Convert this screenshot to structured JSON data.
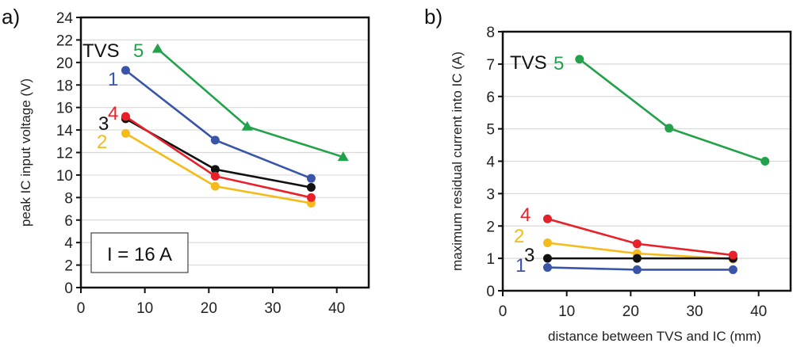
{
  "chart_data": [
    {
      "panel_label": "a)",
      "type": "line",
      "title": "",
      "xlabel": "",
      "ylabel": "peak IC input voltage (V)",
      "xlim": [
        0,
        45
      ],
      "ylim": [
        0,
        24
      ],
      "xticks": [
        0,
        10,
        20,
        30,
        40
      ],
      "yticks": [
        0,
        2,
        4,
        6,
        8,
        10,
        12,
        14,
        16,
        18,
        20,
        22,
        24
      ],
      "grid": "horizontal",
      "annotation": "I = 16 A",
      "tvs_label": "TVS",
      "series": [
        {
          "name": "1",
          "color": "#3a55a8",
          "marker": "circle",
          "x": [
            7,
            21,
            36
          ],
          "y": [
            19.3,
            13.1,
            9.7
          ]
        },
        {
          "name": "2",
          "color": "#f5bb1a",
          "marker": "circle",
          "x": [
            7,
            21,
            36
          ],
          "y": [
            13.7,
            9.0,
            7.5
          ]
        },
        {
          "name": "3",
          "color": "#111111",
          "marker": "circle",
          "x": [
            7,
            21,
            36
          ],
          "y": [
            15.0,
            10.5,
            8.9
          ]
        },
        {
          "name": "4",
          "color": "#e8202a",
          "marker": "circle",
          "x": [
            7,
            21,
            36
          ],
          "y": [
            15.2,
            9.9,
            8.0
          ]
        },
        {
          "name": "5",
          "color": "#22a24a",
          "marker": "triangle",
          "x": [
            12,
            26,
            41
          ],
          "y": [
            21.2,
            14.3,
            11.6
          ]
        }
      ]
    },
    {
      "panel_label": "b)",
      "type": "line",
      "title": "",
      "xlabel": "distance between TVS and IC (mm)",
      "ylabel": "maximum residual current into IC  (A)",
      "xlim": [
        0,
        45
      ],
      "ylim": [
        0,
        8
      ],
      "xticks": [
        0,
        10,
        20,
        30,
        40
      ],
      "yticks": [
        0,
        1,
        2,
        3,
        4,
        5,
        6,
        7,
        8
      ],
      "grid": "horizontal",
      "tvs_label": "TVS",
      "series": [
        {
          "name": "1",
          "color": "#3a55a8",
          "marker": "circle",
          "x": [
            7,
            21,
            36
          ],
          "y": [
            0.72,
            0.65,
            0.65
          ]
        },
        {
          "name": "2",
          "color": "#f5bb1a",
          "marker": "circle",
          "x": [
            7,
            21,
            36
          ],
          "y": [
            1.48,
            1.15,
            0.98
          ]
        },
        {
          "name": "3",
          "color": "#111111",
          "marker": "circle",
          "x": [
            7,
            21,
            36
          ],
          "y": [
            1.0,
            1.0,
            1.0
          ]
        },
        {
          "name": "4",
          "color": "#e8202a",
          "marker": "circle",
          "x": [
            7,
            21,
            36
          ],
          "y": [
            2.22,
            1.45,
            1.1
          ]
        },
        {
          "name": "5",
          "color": "#22a24a",
          "marker": "circle",
          "x": [
            12,
            26,
            41
          ],
          "y": [
            7.15,
            5.02,
            4.0
          ]
        }
      ]
    }
  ]
}
